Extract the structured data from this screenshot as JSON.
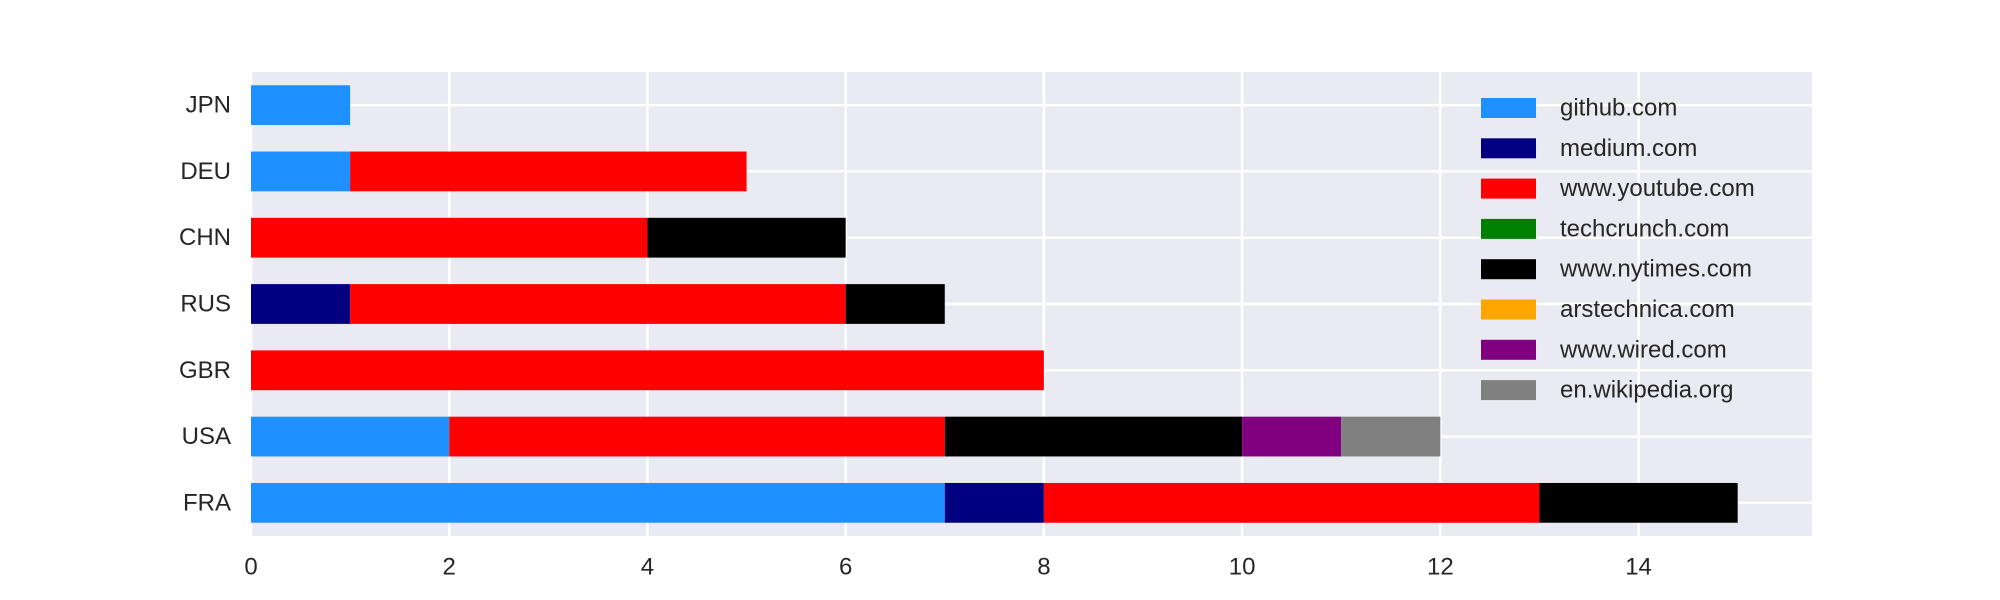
{
  "chart_data": {
    "type": "bar",
    "orientation": "horizontal",
    "stacked": true,
    "title": "",
    "xlabel": "",
    "ylabel": "",
    "xlim": [
      0,
      15.75
    ],
    "xticks": [
      0,
      2,
      4,
      6,
      8,
      10,
      12,
      14
    ],
    "grid": true,
    "legend_position": "top-right",
    "categories": [
      "FRA",
      "USA",
      "GBR",
      "RUS",
      "CHN",
      "DEU",
      "JPN"
    ],
    "series": [
      {
        "name": "github.com",
        "color": "#1e90ff",
        "values": [
          7,
          2,
          0,
          0,
          0,
          1,
          1
        ]
      },
      {
        "name": "medium.com",
        "color": "#000080",
        "values": [
          1,
          0,
          0,
          1,
          0,
          0,
          0
        ]
      },
      {
        "name": "www.youtube.com",
        "color": "#ff0000",
        "values": [
          5,
          5,
          8,
          5,
          4,
          4,
          0
        ]
      },
      {
        "name": "techcrunch.com",
        "color": "#008000",
        "values": [
          0,
          0,
          0,
          0,
          0,
          0,
          0
        ]
      },
      {
        "name": "www.nytimes.com",
        "color": "#000000",
        "values": [
          2,
          3,
          0,
          1,
          2,
          0,
          0
        ]
      },
      {
        "name": "arstechnica.com",
        "color": "#ffa500",
        "values": [
          0,
          0,
          0,
          0,
          0,
          0,
          0
        ]
      },
      {
        "name": "www.wired.com",
        "color": "#800080",
        "values": [
          0,
          1,
          0,
          0,
          0,
          0,
          0
        ]
      },
      {
        "name": "en.wikipedia.org",
        "color": "#808080",
        "values": [
          0,
          1,
          0,
          0,
          0,
          0,
          0
        ]
      }
    ]
  }
}
